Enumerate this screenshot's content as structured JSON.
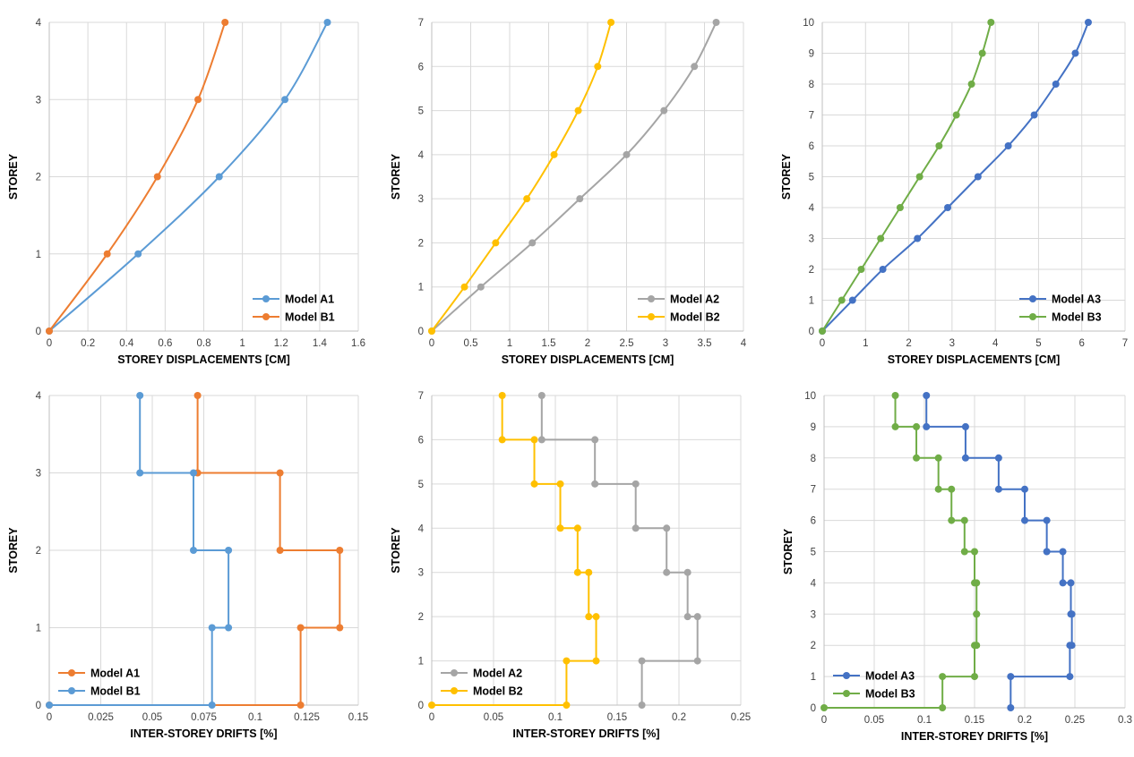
{
  "colors": {
    "A1": "#5b9bd5",
    "B1": "#ed7d31",
    "A2": "#a5a5a5",
    "B2": "#ffc000",
    "A3": "#4472c4",
    "B3": "#70ad47",
    "grid": "#d9d9d9"
  },
  "chart_data": [
    {
      "type": "line",
      "xlabel": "STOREY DISPLACEMENTS [CM]",
      "ylabel": "STOREY",
      "xlim": [
        0,
        1.6
      ],
      "ylim": [
        0,
        4
      ],
      "xticks": [
        0,
        0.2,
        0.4,
        0.6,
        0.8,
        1,
        1.2,
        1.4,
        1.6
      ],
      "xtick_labels": [
        "0",
        "0.2",
        "0.4",
        "0.6",
        "0.8",
        "1",
        "1.2",
        "1.4",
        "1.6"
      ],
      "yticks": [
        0,
        1,
        2,
        3,
        4
      ],
      "grid": true,
      "smooth": true,
      "legend_position": "bottom-right",
      "series": [
        {
          "name": "Model A1",
          "color_key": "A1",
          "x": [
            0,
            0.46,
            0.88,
            1.22,
            1.44
          ],
          "y": [
            0,
            1,
            2,
            3,
            4
          ]
        },
        {
          "name": "Model B1",
          "color_key": "B1",
          "x": [
            0,
            0.3,
            0.56,
            0.77,
            0.91
          ],
          "y": [
            0,
            1,
            2,
            3,
            4
          ]
        }
      ]
    },
    {
      "type": "line",
      "xlabel": "STOREY DISPLACEMENTS [CM]",
      "ylabel": "STOREY",
      "xlim": [
        0,
        4
      ],
      "ylim": [
        0,
        7
      ],
      "xticks": [
        0,
        0.5,
        1,
        1.5,
        2,
        2.5,
        3,
        3.5,
        4
      ],
      "xtick_labels": [
        "0",
        "0.5",
        "1",
        "1.5",
        "2",
        "2.5",
        "3",
        "3.5",
        "4"
      ],
      "yticks": [
        0,
        1,
        2,
        3,
        4,
        5,
        6,
        7
      ],
      "grid": true,
      "smooth": true,
      "legend_position": "bottom-right",
      "series": [
        {
          "name": "Model A2",
          "color_key": "A2",
          "x": [
            0,
            0.63,
            1.29,
            1.9,
            2.5,
            2.98,
            3.37,
            3.65
          ],
          "y": [
            0,
            1,
            2,
            3,
            4,
            5,
            6,
            7
          ]
        },
        {
          "name": "Model B2",
          "color_key": "B2",
          "x": [
            0,
            0.42,
            0.82,
            1.22,
            1.57,
            1.88,
            2.13,
            2.3
          ],
          "y": [
            0,
            1,
            2,
            3,
            4,
            5,
            6,
            7
          ]
        }
      ]
    },
    {
      "type": "line",
      "xlabel": "STOREY DISPLACEMENTS [CM]",
      "ylabel": "STOREY",
      "xlim": [
        0,
        7
      ],
      "ylim": [
        0,
        10
      ],
      "xticks": [
        0,
        1,
        2,
        3,
        4,
        5,
        6,
        7
      ],
      "xtick_labels": [
        "0",
        "1",
        "2",
        "3",
        "4",
        "5",
        "6",
        "7"
      ],
      "yticks": [
        0,
        1,
        2,
        3,
        4,
        5,
        6,
        7,
        8,
        9,
        10
      ],
      "grid": true,
      "smooth": true,
      "legend_position": "bottom-right",
      "series": [
        {
          "name": "Model A3",
          "color_key": "A3",
          "x": [
            0,
            0.7,
            1.4,
            2.2,
            2.9,
            3.6,
            4.3,
            4.9,
            5.4,
            5.85,
            6.15
          ],
          "y": [
            0,
            1,
            2,
            3,
            4,
            5,
            6,
            7,
            8,
            9,
            10
          ]
        },
        {
          "name": "Model B3",
          "color_key": "B3",
          "x": [
            0,
            0.45,
            0.9,
            1.35,
            1.8,
            2.25,
            2.7,
            3.1,
            3.45,
            3.7,
            3.9
          ],
          "y": [
            0,
            1,
            2,
            3,
            4,
            5,
            6,
            7,
            8,
            9,
            10
          ]
        }
      ]
    },
    {
      "type": "line",
      "xlabel": "INTER-STOREY DRIFTS [%]",
      "ylabel": "STOREY",
      "xlim": [
        0,
        0.15
      ],
      "ylim": [
        0,
        4
      ],
      "xticks": [
        0,
        0.025,
        0.05,
        0.075,
        0.1,
        0.125,
        0.15
      ],
      "xtick_labels": [
        "0",
        "0.025",
        "0.05",
        "0.075",
        "0.1",
        "0.125",
        "0.15"
      ],
      "yticks": [
        0,
        1,
        2,
        3,
        4
      ],
      "grid": true,
      "smooth": false,
      "legend_position": "bottom-left",
      "series": [
        {
          "name": "Model A1",
          "color_key": "B1",
          "x": [
            0,
            0.122,
            0.122,
            0.141,
            0.141,
            0.112,
            0.112,
            0.072,
            0.072
          ],
          "y": [
            0,
            0,
            1,
            1,
            2,
            2,
            3,
            3,
            4
          ]
        },
        {
          "name": "Model B1",
          "color_key": "A1",
          "x": [
            0,
            0.079,
            0.079,
            0.087,
            0.087,
            0.07,
            0.07,
            0.044,
            0.044
          ],
          "y": [
            0,
            0,
            1,
            1,
            2,
            2,
            3,
            3,
            4
          ]
        }
      ]
    },
    {
      "type": "line",
      "xlabel": "INTER-STOREY DRIFTS [%]",
      "ylabel": "STOREY",
      "xlim": [
        0,
        0.25
      ],
      "ylim": [
        0,
        7
      ],
      "xticks": [
        0,
        0.05,
        0.1,
        0.15,
        0.2,
        0.25
      ],
      "xtick_labels": [
        "0",
        "0.05",
        "0.1",
        "0.15",
        "0.2",
        "0.25"
      ],
      "yticks": [
        0,
        1,
        2,
        3,
        4,
        5,
        6,
        7
      ],
      "grid": true,
      "smooth": false,
      "legend_position": "bottom-left",
      "series": [
        {
          "name": "Model A2",
          "color_key": "A2",
          "x": [
            0.17,
            0.17,
            0.215,
            0.215,
            0.207,
            0.207,
            0.19,
            0.19,
            0.165,
            0.165,
            0.132,
            0.132,
            0.089,
            0.089
          ],
          "y": [
            0,
            1,
            1,
            2,
            2,
            3,
            3,
            4,
            4,
            5,
            5,
            6,
            6,
            7
          ]
        },
        {
          "name": "Model B2",
          "color_key": "B2",
          "x": [
            0,
            0.109,
            0.109,
            0.133,
            0.133,
            0.127,
            0.127,
            0.118,
            0.118,
            0.104,
            0.104,
            0.083,
            0.083,
            0.057,
            0.057
          ],
          "y": [
            0,
            0,
            1,
            1,
            2,
            2,
            3,
            3,
            4,
            4,
            5,
            5,
            6,
            6,
            7
          ]
        }
      ]
    },
    {
      "type": "line",
      "xlabel": "INTER-STOREY DRIFTS [%]",
      "ylabel": "STOREY",
      "xlim": [
        0,
        0.3
      ],
      "ylim": [
        0,
        10
      ],
      "xticks": [
        0,
        0.05,
        0.1,
        0.15,
        0.2,
        0.25,
        0.3
      ],
      "xtick_labels": [
        "0",
        "0.05",
        "0.1",
        "0.15",
        "0.2",
        "0.25",
        "0.3"
      ],
      "yticks": [
        0,
        1,
        2,
        3,
        4,
        5,
        6,
        7,
        8,
        9,
        10
      ],
      "grid": true,
      "smooth": false,
      "legend_position": "bottom-left",
      "series": [
        {
          "name": "Model A3",
          "color_key": "A3",
          "x": [
            0.186,
            0.186,
            0.245,
            0.245,
            0.247,
            0.247,
            0.246,
            0.246,
            0.238,
            0.238,
            0.222,
            0.222,
            0.2,
            0.2,
            0.174,
            0.174,
            0.141,
            0.141,
            0.102,
            0.102
          ],
          "y": [
            0,
            1,
            1,
            2,
            2,
            3,
            3,
            4,
            4,
            5,
            5,
            6,
            6,
            7,
            7,
            8,
            8,
            9,
            9,
            10
          ]
        },
        {
          "name": "Model B3",
          "color_key": "B3",
          "x": [
            0,
            0.118,
            0.118,
            0.15,
            0.15,
            0.152,
            0.152,
            0.152,
            0.152,
            0.15,
            0.15,
            0.14,
            0.14,
            0.127,
            0.127,
            0.114,
            0.114,
            0.092,
            0.092,
            0.071,
            0.071
          ],
          "y": [
            0,
            0,
            1,
            1,
            2,
            2,
            3,
            3,
            4,
            4,
            5,
            5,
            6,
            6,
            7,
            7,
            8,
            8,
            9,
            9,
            10
          ]
        }
      ]
    }
  ]
}
